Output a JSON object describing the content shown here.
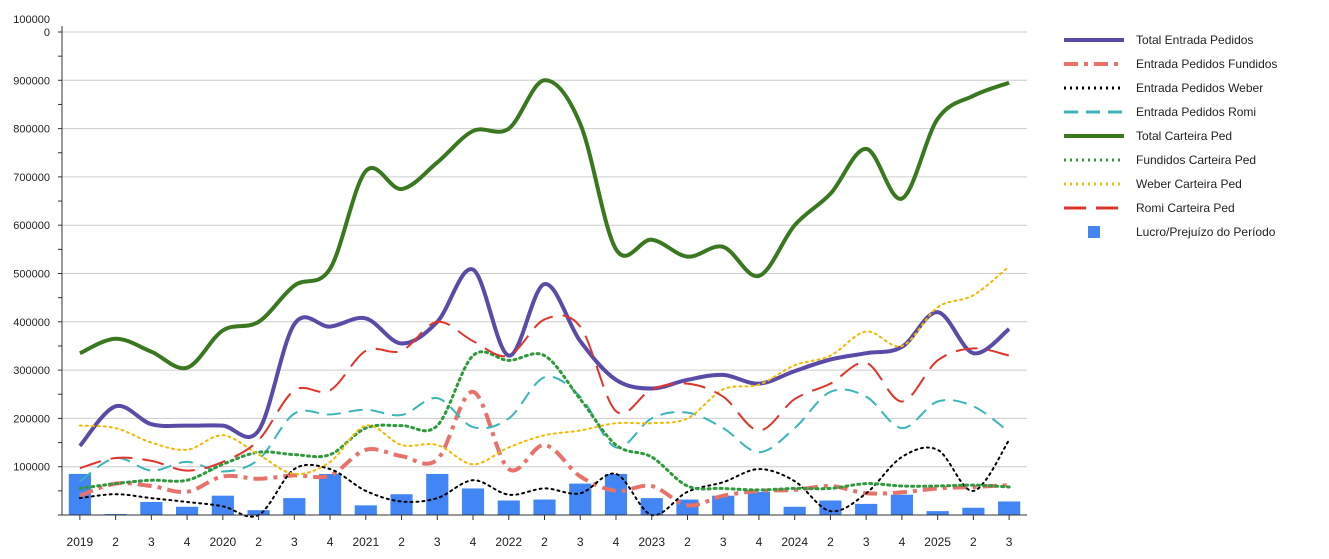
{
  "chart_data": {
    "type": "line",
    "categories": [
      "2019",
      "2",
      "3",
      "4",
      "2020",
      "2",
      "3",
      "4",
      "2021",
      "2",
      "3",
      "4",
      "2022",
      "2",
      "3",
      "4",
      "2023",
      "2",
      "3",
      "4",
      "2024",
      "2",
      "3",
      "4",
      "2025",
      "2",
      "3"
    ],
    "y_ticks": [
      {
        "value": 100000,
        "label": "100000"
      },
      {
        "value": 200000,
        "label": "200000"
      },
      {
        "value": 300000,
        "label": "300000"
      },
      {
        "value": 400000,
        "label": "400000"
      },
      {
        "value": 500000,
        "label": "500000"
      },
      {
        "value": 600000,
        "label": "600000"
      },
      {
        "value": 700000,
        "label": "700000"
      },
      {
        "value": 800000,
        "label": "800000"
      },
      {
        "value": 900000,
        "label": "900000"
      },
      {
        "value": 1000000,
        "label": "100000\n0"
      }
    ],
    "ylim": [
      0,
      1000000
    ],
    "grid": true,
    "legend_position": "right",
    "series": [
      {
        "name": "Total Entrada Pedidos",
        "kind": "line",
        "color": "#5b4ba8",
        "dash": "solid",
        "width": 4,
        "values": [
          143000,
          225000,
          188000,
          185000,
          185000,
          175000,
          395000,
          390000,
          407000,
          355000,
          400000,
          508000,
          330000,
          478000,
          360000,
          280000,
          262000,
          280000,
          290000,
          272000,
          298000,
          322000,
          335000,
          348000,
          420000,
          335000,
          385000
        ]
      },
      {
        "name": "Entrada Pedidos Fundidos",
        "kind": "line",
        "color": "#e8726a",
        "dash": "dashdot",
        "width": 4,
        "values": [
          40000,
          65000,
          60000,
          48000,
          80000,
          75000,
          82000,
          82000,
          135000,
          122000,
          115000,
          255000,
          95000,
          145000,
          80000,
          50000,
          60000,
          20000,
          40000,
          50000,
          52000,
          60000,
          45000,
          47000,
          55000,
          58000,
          62000
        ]
      },
      {
        "name": "Entrada Pedidos Weber",
        "kind": "line",
        "color": "#000000",
        "dash": "dot",
        "width": 2,
        "values": [
          35000,
          43000,
          35000,
          27000,
          18000,
          0,
          95000,
          95000,
          50000,
          28000,
          35000,
          72000,
          42000,
          55000,
          45000,
          85000,
          0,
          48000,
          68000,
          95000,
          70000,
          8000,
          45000,
          120000,
          135000,
          50000,
          155000
        ]
      },
      {
        "name": "Entrada Pedidos Romi",
        "kind": "line",
        "color": "#3ab5b8",
        "dash": "dash",
        "width": 2,
        "values": [
          70000,
          118000,
          92000,
          110000,
          90000,
          115000,
          210000,
          208000,
          218000,
          207000,
          242000,
          182000,
          200000,
          285000,
          245000,
          140000,
          200000,
          212000,
          180000,
          130000,
          180000,
          255000,
          245000,
          180000,
          235000,
          225000,
          172000
        ]
      },
      {
        "name": "Total Carteira Ped",
        "kind": "line",
        "color": "#3a7820",
        "dash": "solid",
        "width": 4,
        "values": [
          335000,
          365000,
          338000,
          305000,
          382000,
          400000,
          475000,
          510000,
          712000,
          675000,
          730000,
          795000,
          800000,
          900000,
          810000,
          550000,
          570000,
          535000,
          555000,
          495000,
          600000,
          665000,
          758000,
          655000,
          820000,
          868000,
          895000
        ]
      },
      {
        "name": "Fundidos Carteira Ped",
        "kind": "line",
        "color": "#2e9a3c",
        "dash": "dot",
        "width": 3,
        "values": [
          55000,
          65000,
          72000,
          72000,
          105000,
          130000,
          125000,
          125000,
          180000,
          185000,
          185000,
          330000,
          320000,
          330000,
          240000,
          145000,
          120000,
          60000,
          55000,
          52000,
          55000,
          55000,
          65000,
          60000,
          60000,
          62000,
          58000
        ]
      },
      {
        "name": "Weber Carteira Ped",
        "kind": "line",
        "color": "#f5b800",
        "dash": "dot",
        "width": 2,
        "values": [
          185000,
          180000,
          150000,
          135000,
          165000,
          125000,
          85000,
          110000,
          185000,
          145000,
          145000,
          105000,
          140000,
          165000,
          175000,
          190000,
          190000,
          200000,
          260000,
          270000,
          310000,
          330000,
          380000,
          350000,
          430000,
          455000,
          515000
        ]
      },
      {
        "name": "Romi Carteira Ped",
        "kind": "line",
        "color": "#e0352b",
        "dash": "longdash",
        "width": 2,
        "values": [
          97000,
          118000,
          112000,
          92000,
          110000,
          155000,
          258000,
          258000,
          340000,
          340000,
          400000,
          360000,
          330000,
          405000,
          390000,
          215000,
          260000,
          272000,
          245000,
          175000,
          240000,
          272000,
          315000,
          235000,
          320000,
          345000,
          330000
        ]
      },
      {
        "name": "Lucro/Prejuízo do Período",
        "kind": "bar",
        "color": "#4285f4",
        "values": [
          85000,
          0,
          27000,
          17000,
          40000,
          10000,
          35000,
          85000,
          20000,
          43000,
          85000,
          55000,
          30000,
          32000,
          65000,
          85000,
          35000,
          32000,
          40000,
          48000,
          17000,
          30000,
          23000,
          42000,
          8000,
          15000,
          28000
        ]
      }
    ]
  }
}
